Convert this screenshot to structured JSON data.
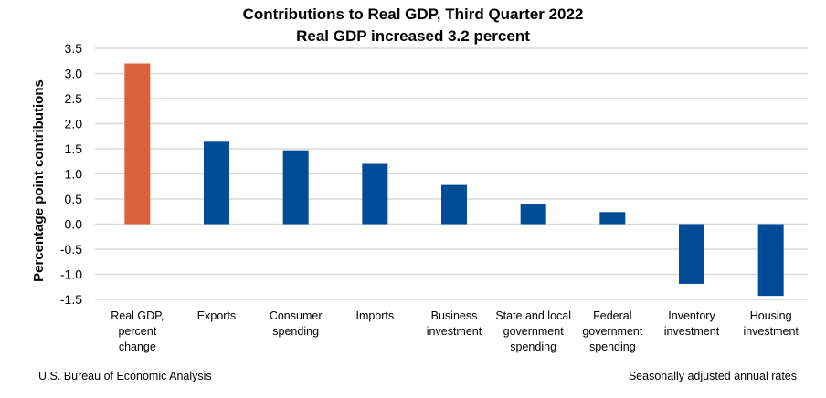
{
  "chart_data": {
    "type": "bar",
    "title": "Contributions to Real GDP, Third Quarter 2022",
    "subtitle": "Real GDP increased 3.2 percent",
    "ylabel": "Percentage point contributions",
    "xlabel": "",
    "ylim": [
      -1.5,
      3.5
    ],
    "yticks": [
      "3.5",
      "3.0",
      "2.5",
      "2.0",
      "1.5",
      "1.0",
      "0.5",
      "0.0",
      "-0.5",
      "-1.0",
      "-1.5"
    ],
    "grid": true,
    "categories": [
      [
        "Real GDP,",
        "percent",
        "change"
      ],
      [
        "Exports"
      ],
      [
        "Consumer",
        "spending"
      ],
      [
        "Imports"
      ],
      [
        "Business",
        "investment"
      ],
      [
        "State and local",
        "government",
        "spending"
      ],
      [
        "Federal",
        "government",
        "spending"
      ],
      [
        "Inventory",
        "investment"
      ],
      [
        "Housing",
        "investment"
      ]
    ],
    "values": [
      3.2,
      1.64,
      1.47,
      1.2,
      0.78,
      0.4,
      0.24,
      -1.19,
      -1.43
    ],
    "colors": [
      "#D9623B",
      "#004C97",
      "#004C97",
      "#004C97",
      "#004C97",
      "#004C97",
      "#004C97",
      "#004C97",
      "#004C97"
    ],
    "grid_color": "#D9D9D9"
  },
  "footer": {
    "source": "U.S. Bureau of Economic Analysis",
    "note": "Seasonally adjusted annual rates"
  }
}
